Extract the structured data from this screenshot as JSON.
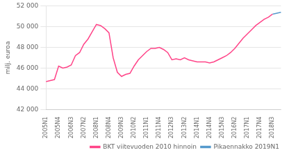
{
  "chart_data": {
    "type": "line",
    "ylabel": "milj. euroa",
    "categories": [
      "2005N1",
      null,
      null,
      "2005N4",
      null,
      null,
      "2006N3",
      null,
      null,
      "2007N2",
      null,
      null,
      "2008N1",
      null,
      null,
      "2008N4",
      null,
      null,
      "2009N3",
      null,
      null,
      "2010N2",
      null,
      null,
      "2011N1",
      null,
      null,
      "2011N4",
      null,
      null,
      "2012N3",
      null,
      null,
      "2013N2",
      null,
      null,
      "2014N1",
      null,
      null,
      "2014N4",
      null,
      null,
      "2015N3",
      null,
      null,
      "2016N2",
      null,
      null,
      "2017N1",
      null,
      null,
      "2017N4",
      null,
      null,
      "2018N3",
      null,
      null
    ],
    "series": [
      {
        "name": "BKT viitevuoden 2010 hinnoin",
        "color": "#FF4488",
        "values": [
          44700,
          44800,
          44900,
          46200,
          46000,
          46100,
          46300,
          47200,
          47500,
          48300,
          48800,
          49500,
          50200,
          50100,
          49800,
          49400,
          47000,
          45600,
          45200,
          45400,
          45500,
          46200,
          46800,
          47200,
          47600,
          47900,
          47900,
          48000,
          47800,
          47500,
          46800,
          46900,
          46800,
          47000,
          46800,
          46700,
          46600,
          46600,
          46600,
          46500,
          46600,
          46800,
          47000,
          47200,
          47500,
          47900,
          48400,
          48900,
          49300,
          49700,
          50100,
          50400,
          50700,
          50900,
          51200,
          null,
          null
        ]
      },
      {
        "name": "Pikaennakko 2019N1",
        "color": "#5599CC",
        "values": [
          null,
          null,
          null,
          null,
          null,
          null,
          null,
          null,
          null,
          null,
          null,
          null,
          null,
          null,
          null,
          null,
          null,
          null,
          null,
          null,
          null,
          null,
          null,
          null,
          null,
          null,
          null,
          null,
          null,
          null,
          null,
          null,
          null,
          null,
          null,
          null,
          null,
          null,
          null,
          null,
          null,
          null,
          null,
          null,
          null,
          null,
          null,
          null,
          null,
          null,
          null,
          null,
          null,
          null,
          51200,
          null,
          51380
        ]
      }
    ],
    "ylim": [
      42000,
      52000
    ],
    "yticks": [
      {
        "value": 42000,
        "label": "42 000"
      },
      {
        "value": 44000,
        "label": "44 000"
      },
      {
        "value": 46000,
        "label": "46 000"
      },
      {
        "value": 48000,
        "label": "48 000"
      },
      {
        "value": 50000,
        "label": "50 000"
      },
      {
        "value": 52000,
        "label": "52 000"
      }
    ],
    "grid": "y",
    "legend": "lower right"
  }
}
